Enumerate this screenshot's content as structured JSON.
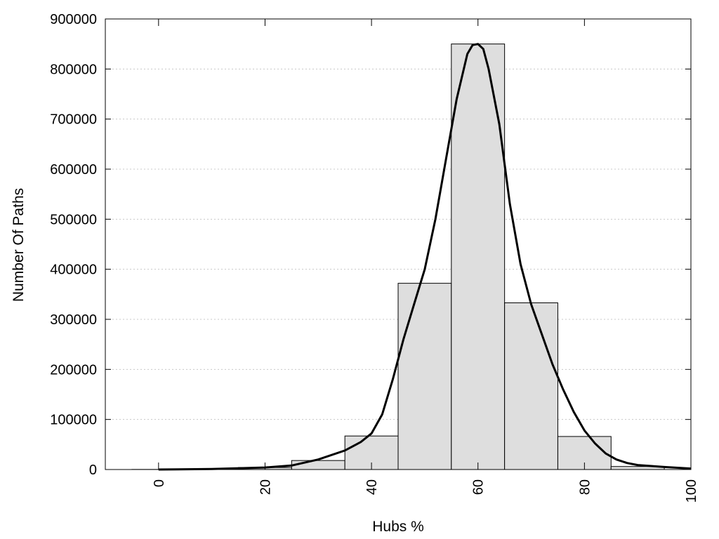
{
  "chart_data": {
    "type": "bar",
    "xlabel": "Hubs %",
    "ylabel": "Number Of Paths",
    "xlim": [
      -10,
      100
    ],
    "ylim": [
      0,
      900000
    ],
    "x_ticks": [
      0,
      20,
      40,
      60,
      80,
      100
    ],
    "y_ticks": [
      0,
      100000,
      200000,
      300000,
      400000,
      500000,
      600000,
      700000,
      800000,
      900000
    ],
    "grid": "horizontal dotted",
    "bin_width": 10,
    "bars": [
      {
        "x": 0,
        "value": 200
      },
      {
        "x": 10,
        "value": 800
      },
      {
        "x": 20,
        "value": 4000
      },
      {
        "x": 30,
        "value": 18000
      },
      {
        "x": 40,
        "value": 67000
      },
      {
        "x": 50,
        "value": 372000
      },
      {
        "x": 60,
        "value": 850000
      },
      {
        "x": 70,
        "value": 333000
      },
      {
        "x": 80,
        "value": 66000
      },
      {
        "x": 90,
        "value": 6000
      }
    ],
    "curve": {
      "x": [
        0,
        10,
        20,
        25,
        30,
        35,
        38,
        40,
        42,
        44,
        46,
        48,
        50,
        52,
        54,
        56,
        58,
        59,
        60,
        61,
        62,
        64,
        66,
        68,
        70,
        72,
        74,
        76,
        78,
        80,
        82,
        84,
        86,
        88,
        90,
        95,
        100
      ],
      "y": [
        0,
        1000,
        4000,
        8000,
        20000,
        38000,
        55000,
        72000,
        110000,
        180000,
        260000,
        330000,
        400000,
        500000,
        620000,
        740000,
        830000,
        848000,
        850000,
        840000,
        800000,
        690000,
        530000,
        410000,
        330000,
        270000,
        210000,
        160000,
        115000,
        78000,
        52000,
        32000,
        20000,
        13000,
        9000,
        5000,
        2000
      ]
    }
  }
}
